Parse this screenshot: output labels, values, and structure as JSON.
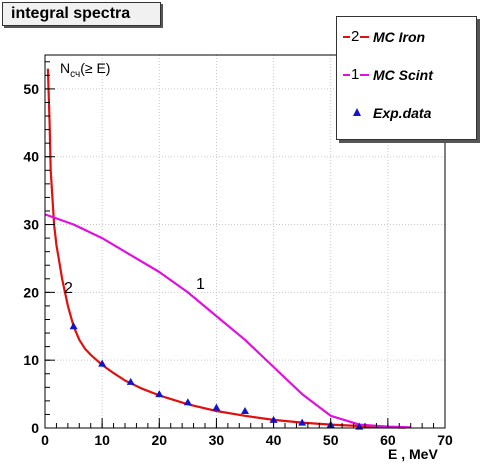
{
  "title": "integral spectra",
  "y_label_main": "N",
  "y_label_sub": "сч",
  "y_label_tail": "(≥ E)",
  "x_label": "E , MeV",
  "curve_labels": {
    "iron": "2",
    "scint": "1"
  },
  "legend": [
    {
      "number": "2",
      "label": "MC Iron",
      "color": "#e01010"
    },
    {
      "number": "1",
      "label": "MC Scint",
      "color": "#e010e0"
    },
    {
      "number": "",
      "label": "Exp.data",
      "color": "#1414c8"
    }
  ],
  "chart_data": {
    "type": "line",
    "title": "integral spectra",
    "xlabel": "E , MeV",
    "ylabel": "Nсч(≥ E)",
    "xlim": [
      0,
      70
    ],
    "ylim": [
      0,
      55
    ],
    "xticks": [
      0,
      10,
      20,
      30,
      40,
      50,
      60,
      70
    ],
    "yticks": [
      0,
      10,
      20,
      30,
      40,
      50
    ],
    "grid": true,
    "legend_position": "top-right",
    "series": [
      {
        "name": "MC Iron",
        "kind": "line",
        "color": "#e01010",
        "x": [
          0.5,
          0.8,
          1,
          1.3,
          1.6,
          2,
          2.5,
          3,
          3.5,
          4,
          5,
          6,
          7,
          8,
          10,
          12,
          14,
          17,
          20,
          25,
          30,
          35,
          40,
          45,
          50,
          55,
          60,
          63
        ],
        "y": [
          53,
          45,
          38,
          34,
          30,
          27,
          24.5,
          22,
          20,
          18,
          15,
          13,
          11.7,
          10.8,
          9.3,
          8.1,
          7.0,
          5.8,
          4.8,
          3.5,
          2.5,
          1.8,
          1.2,
          0.8,
          0.5,
          0.3,
          0.1,
          0.05
        ]
      },
      {
        "name": "MC Scint",
        "kind": "line",
        "color": "#e010e0",
        "x": [
          0,
          5,
          10,
          15,
          20,
          25,
          30,
          35,
          40,
          45,
          50,
          55,
          60,
          64
        ],
        "y": [
          31.5,
          30,
          28,
          25.5,
          23,
          20,
          16.5,
          13,
          9,
          5,
          1.8,
          0.5,
          0.2,
          0.1
        ]
      },
      {
        "name": "Exp.data",
        "kind": "scatter",
        "color": "#1414c8",
        "x": [
          5,
          10,
          15,
          20,
          25,
          30,
          35,
          40,
          45,
          50,
          55
        ],
        "y": [
          15,
          9.5,
          6.8,
          5.0,
          3.8,
          3.0,
          2.5,
          1.2,
          0.8,
          0.5,
          0.2
        ]
      }
    ]
  }
}
